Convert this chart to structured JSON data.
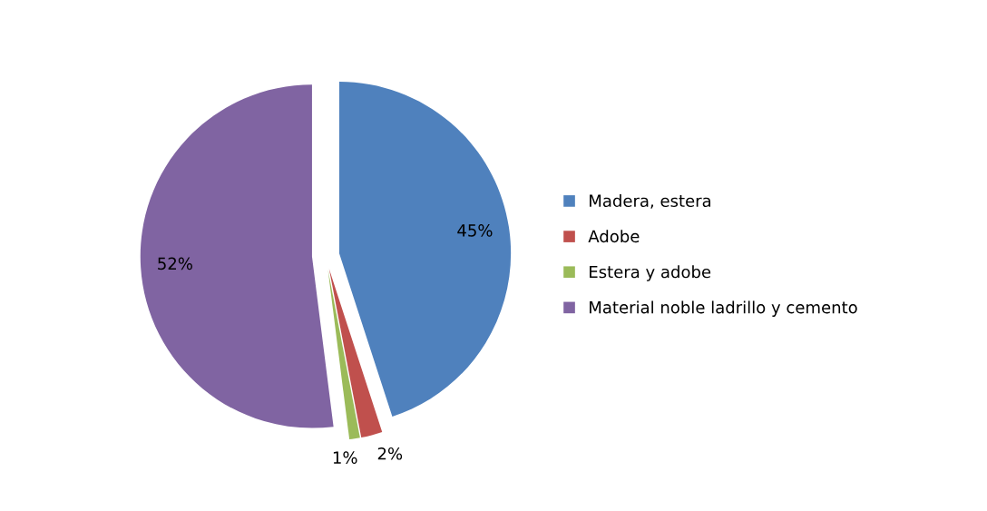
{
  "chart_data": {
    "type": "pie",
    "categories": [
      "Madera, estera",
      "Adobe",
      "Estera y adobe",
      "Material noble ladrillo y cemento"
    ],
    "values": [
      45,
      2,
      1,
      52
    ],
    "value_labels": [
      "45%",
      "2%",
      "1%",
      "52%"
    ],
    "colors": [
      "#4f81bd",
      "#c0504d",
      "#9bbb59",
      "#8064a2"
    ],
    "legend": "right"
  }
}
